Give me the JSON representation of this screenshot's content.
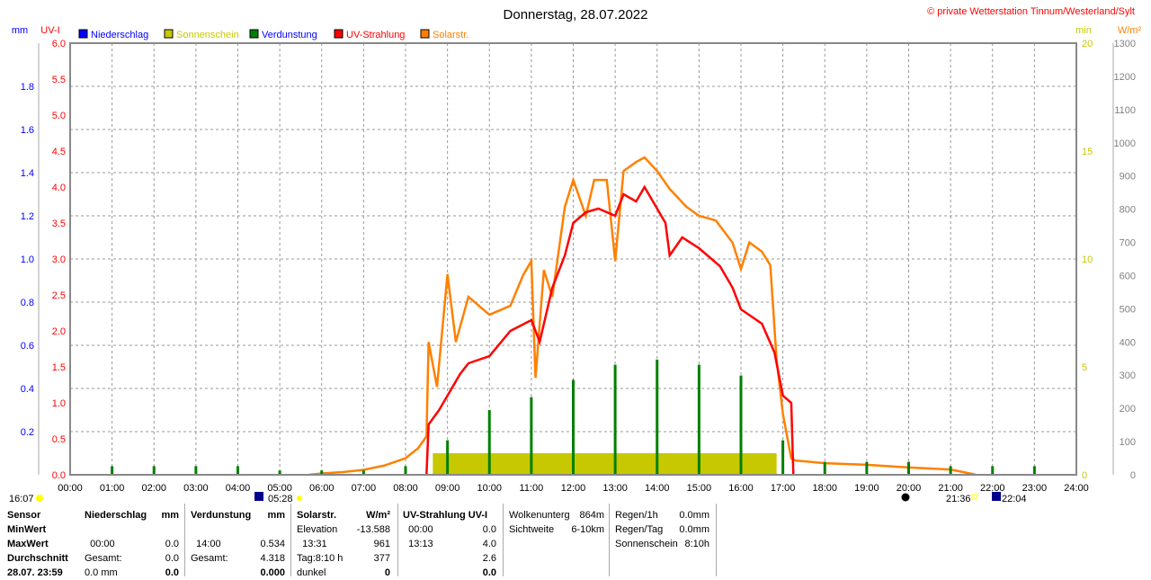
{
  "title": "Donnerstag, 28.07.2022",
  "copyright": "© private Wetterstation Tinnum/Westerland/Sylt",
  "axis_units": {
    "mm": "mm",
    "uv": "UV-I",
    "min": "min",
    "wm2": "W/m²"
  },
  "legend": [
    {
      "label": "Niederschlag",
      "color": "#0000ff",
      "text_color": "#0000ff"
    },
    {
      "label": "Sonnenschein",
      "color": "#c8c800",
      "text_color": "#c8c800"
    },
    {
      "label": "Verdunstung",
      "color": "#008000",
      "text_color": "#0000ff"
    },
    {
      "label": "UV-Strahlung",
      "color": "#ff0000",
      "text_color": "#ff0000"
    },
    {
      "label": "Solarstr.",
      "color": "#ff8000",
      "text_color": "#ff8000"
    }
  ],
  "chart_data": {
    "type": "line",
    "x_range_hours": [
      0,
      24
    ],
    "x_ticks": [
      "00:00",
      "01:00",
      "02:00",
      "03:00",
      "04:00",
      "05:00",
      "06:00",
      "07:00",
      "08:00",
      "09:00",
      "10:00",
      "11:00",
      "12:00",
      "13:00",
      "14:00",
      "15:00",
      "16:00",
      "17:00",
      "18:00",
      "19:00",
      "20:00",
      "21:00",
      "22:00",
      "23:00",
      "24:00"
    ],
    "axes": {
      "uv": {
        "range": [
          0,
          6
        ],
        "ticks": [
          "0.0",
          "0.5",
          "1.0",
          "1.5",
          "2.0",
          "2.5",
          "3.0",
          "3.5",
          "4.0",
          "4.5",
          "5.0",
          "5.5",
          "6.0"
        ]
      },
      "mm": {
        "range": [
          0,
          2
        ],
        "ticks": [
          "0.2",
          "0.4",
          "0.6",
          "0.8",
          "1.0",
          "1.2",
          "1.4",
          "1.6",
          "1.8"
        ]
      },
      "min": {
        "range": [
          0,
          20
        ],
        "ticks": [
          "0",
          "5",
          "10",
          "15",
          "20"
        ]
      },
      "wm2": {
        "range": [
          0,
          1300
        ],
        "ticks": [
          "0",
          "100",
          "200",
          "300",
          "400",
          "500",
          "600",
          "700",
          "800",
          "900",
          "1000",
          "1100",
          "1200",
          "1300"
        ]
      }
    },
    "series": [
      {
        "name": "Solarstr.",
        "axis": "wm2",
        "color": "#ff8000",
        "points": [
          [
            5.7,
            0
          ],
          [
            6,
            4
          ],
          [
            6.5,
            8
          ],
          [
            7,
            15
          ],
          [
            7.5,
            28
          ],
          [
            8,
            50
          ],
          [
            8.3,
            80
          ],
          [
            8.5,
            116
          ],
          [
            8.55,
            400
          ],
          [
            8.75,
            265
          ],
          [
            9,
            604
          ],
          [
            9.2,
            400
          ],
          [
            9.5,
            536
          ],
          [
            10,
            482
          ],
          [
            10.5,
            509
          ],
          [
            10.8,
            600
          ],
          [
            11,
            644
          ],
          [
            11.1,
            292
          ],
          [
            11.3,
            617
          ],
          [
            11.5,
            536
          ],
          [
            11.8,
            807
          ],
          [
            12,
            888
          ],
          [
            12.3,
            780
          ],
          [
            12.5,
            888
          ],
          [
            12.8,
            888
          ],
          [
            13,
            644
          ],
          [
            13.2,
            915
          ],
          [
            13.5,
            942
          ],
          [
            13.7,
            956
          ],
          [
            14,
            915
          ],
          [
            14.3,
            861
          ],
          [
            14.7,
            807
          ],
          [
            15,
            780
          ],
          [
            15.4,
            766
          ],
          [
            15.8,
            699
          ],
          [
            16,
            620
          ],
          [
            16.2,
            700
          ],
          [
            16.5,
            672
          ],
          [
            16.7,
            631
          ],
          [
            16.85,
            347
          ],
          [
            17,
            184
          ],
          [
            17.2,
            49
          ],
          [
            17.3,
            43
          ],
          [
            18,
            35
          ],
          [
            19,
            30
          ],
          [
            20,
            22
          ],
          [
            21,
            16
          ],
          [
            21.5,
            3
          ],
          [
            21.6,
            0
          ]
        ]
      },
      {
        "name": "UV-Strahlung",
        "axis": "uv",
        "color": "#ff0000",
        "points": [
          [
            8.5,
            0
          ],
          [
            8.55,
            0.7
          ],
          [
            8.8,
            0.9
          ],
          [
            9,
            1.1
          ],
          [
            9.3,
            1.4
          ],
          [
            9.5,
            1.55
          ],
          [
            10,
            1.65
          ],
          [
            10.5,
            2.0
          ],
          [
            11,
            2.15
          ],
          [
            11.2,
            1.85
          ],
          [
            11.5,
            2.6
          ],
          [
            11.8,
            3.05
          ],
          [
            12,
            3.5
          ],
          [
            12.3,
            3.65
          ],
          [
            12.6,
            3.7
          ],
          [
            13,
            3.6
          ],
          [
            13.2,
            3.9
          ],
          [
            13.5,
            3.8
          ],
          [
            13.7,
            4.0
          ],
          [
            14,
            3.7
          ],
          [
            14.2,
            3.5
          ],
          [
            14.3,
            3.05
          ],
          [
            14.6,
            3.3
          ],
          [
            15,
            3.15
          ],
          [
            15.5,
            2.9
          ],
          [
            15.8,
            2.6
          ],
          [
            16,
            2.3
          ],
          [
            16.5,
            2.1
          ],
          [
            16.8,
            1.7
          ],
          [
            17,
            1.1
          ],
          [
            17.2,
            1.0
          ],
          [
            17.25,
            0
          ]
        ]
      },
      {
        "name": "Sonnenschein",
        "axis": "min",
        "color": "#c8c800",
        "type": "area",
        "x_range": [
          8.65,
          16.85
        ],
        "value": 1.0
      },
      {
        "name": "Verdunstung",
        "axis": "mm",
        "color": "#008000",
        "type": "bar",
        "points": [
          [
            1,
            0.04
          ],
          [
            2,
            0.04
          ],
          [
            3,
            0.04
          ],
          [
            4,
            0.04
          ],
          [
            5,
            0.02
          ],
          [
            6,
            0.02
          ],
          [
            7,
            0.02
          ],
          [
            8,
            0.04
          ],
          [
            9,
            0.16
          ],
          [
            10,
            0.3
          ],
          [
            11,
            0.36
          ],
          [
            12,
            0.44
          ],
          [
            13,
            0.51
          ],
          [
            14,
            0.534
          ],
          [
            15,
            0.51
          ],
          [
            16,
            0.46
          ],
          [
            17,
            0.16
          ],
          [
            18,
            0.06
          ],
          [
            19,
            0.06
          ],
          [
            20,
            0.06
          ],
          [
            21,
            0.04
          ],
          [
            22,
            0.04
          ],
          [
            23,
            0.04
          ]
        ]
      }
    ]
  },
  "events": {
    "moonset": "16:07",
    "sunrise": "05:28",
    "sunset": "21:36",
    "moonrise": "22:04"
  },
  "table": {
    "sensor": {
      "h": "Sensor",
      "min": "MinWert",
      "max": "MaxWert",
      "avg": "Durchschnitt",
      "last": "28.07. 23:59"
    },
    "rain": {
      "h": "Niederschlag",
      "u": "mm",
      "max_t": "00:00",
      "max_v": "0.0",
      "g": "Gesamt:",
      "g_v": "0.0",
      "last_t": "0.0 mm",
      "last_v": "0.0"
    },
    "evap": {
      "h": "Verdunstung",
      "u": "mm",
      "max_t": "14:00",
      "max_v": "0.534",
      "g": "Gesamt:",
      "g_v": "4.318",
      "last_v": "0.000"
    },
    "solar": {
      "h": "Solarstr.",
      "u": "W/m²",
      "min_t": "Elevation",
      "min_v": "-13.588",
      "max_t": "13:31",
      "max_v": "961",
      "avg_t": "Tag:8:10 h",
      "avg_v": "377",
      "last_t": "dunkel",
      "last_v": "0"
    },
    "uv": {
      "h": "UV-Strahlung UV-I",
      "min_t": "00:00",
      "min_v": "0.0",
      "max_t": "13:13",
      "max_v": "4.0",
      "avg_v": "2.6",
      "last_v": "0.0"
    },
    "cloud": {
      "a": "Wolkenunterg",
      "a_v": "864m",
      "b": "Sichtweite",
      "b_v": "6-10km"
    },
    "sum": {
      "a": "Regen/1h",
      "a_v": "0.0mm",
      "b": "Regen/Tag",
      "b_v": "0.0mm",
      "c": "Sonnenschein",
      "c_v": "8:10h"
    }
  }
}
